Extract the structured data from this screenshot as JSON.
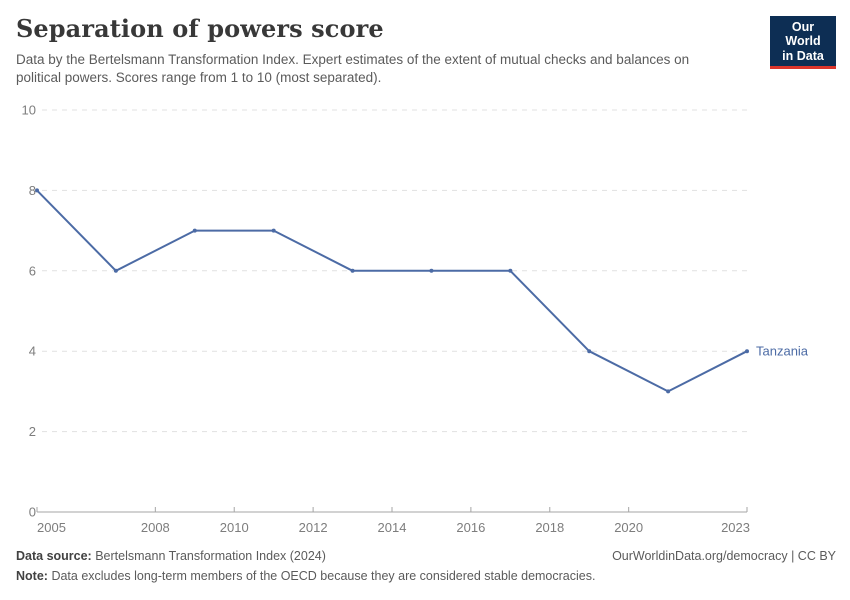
{
  "header": {
    "title": "Separation of powers score",
    "subtitle": "Data by the Bertelsmann Transformation Index. Expert estimates of the extent of mutual checks and balances on political powers. Scores range from 1 to 10 (most separated).",
    "logo": {
      "line1": "Our World",
      "line2": "in Data"
    }
  },
  "chart_data": {
    "type": "line",
    "title": "Separation of powers score",
    "xlabel": "",
    "ylabel": "",
    "xlim": [
      2005,
      2023
    ],
    "ylim": [
      0,
      10
    ],
    "grid": true,
    "legend_position": "end-of-line",
    "xticks": [
      2005,
      2008,
      2010,
      2012,
      2014,
      2016,
      2018,
      2020,
      2023
    ],
    "yticks": [
      0,
      2,
      4,
      6,
      8,
      10
    ],
    "series": [
      {
        "name": "Tanzania",
        "x": [
          2005,
          2007,
          2009,
          2011,
          2013,
          2015,
          2017,
          2019,
          2021,
          2023
        ],
        "values": [
          8,
          6,
          7,
          7,
          6,
          6,
          6,
          4,
          3,
          4
        ]
      }
    ]
  },
  "footer": {
    "source_label": "Data source:",
    "source_text": "Bertelsmann Transformation Index (2024)",
    "note_label": "Note:",
    "note_text": "Data excludes long-term members of the OECD because they are considered stable democracies.",
    "right_text": "OurWorldinData.org/democracy | CC BY"
  },
  "colors": {
    "line": "#4C6BA5",
    "series_label": "#4C6BA5",
    "grid": "#E1E1E1",
    "axis": "#A5A5A5",
    "tick_text": "#7D7D7D",
    "logo_bg": "#0D2E54",
    "logo_bar": "#DC352B"
  }
}
